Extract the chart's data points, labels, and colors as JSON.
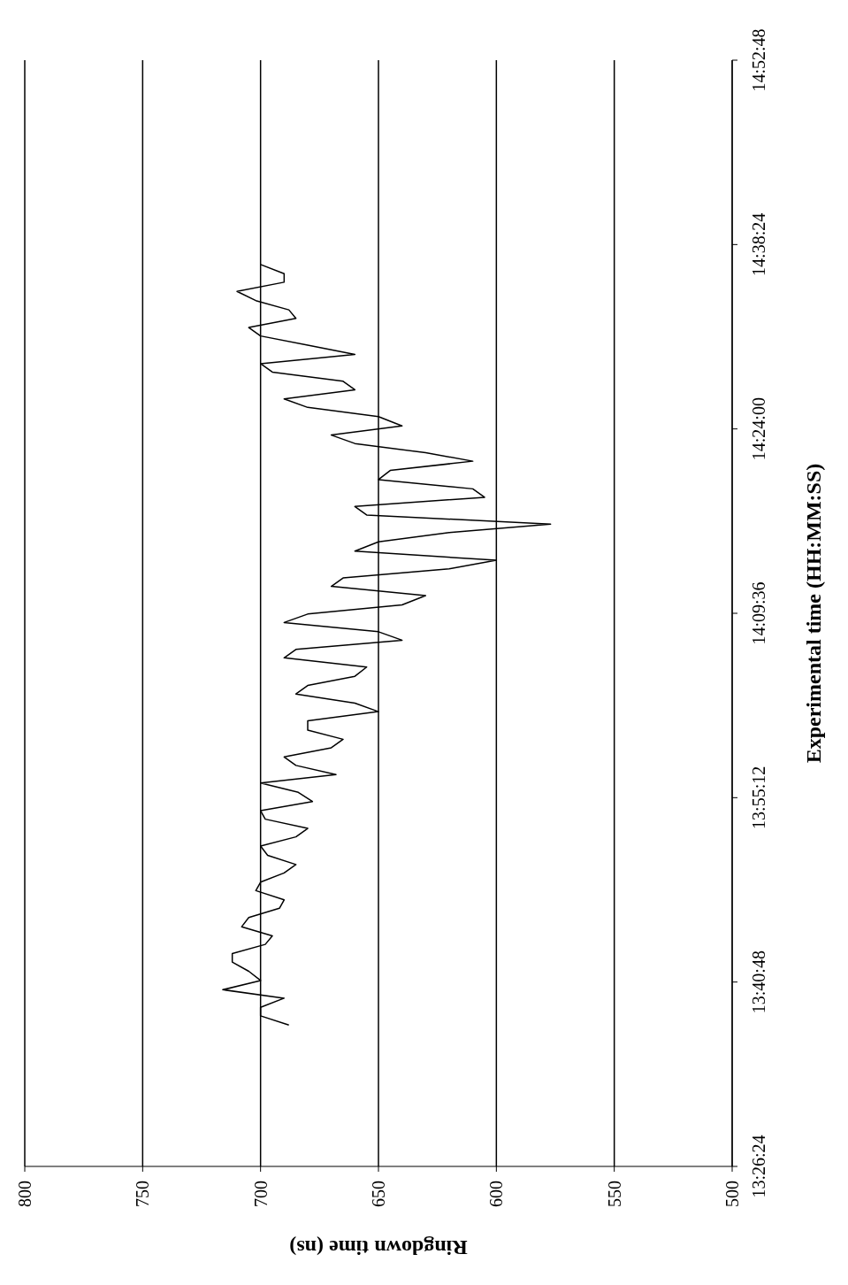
{
  "chart_data": {
    "type": "line",
    "xlabel": "Ringdown time (ns)",
    "ylabel": "Experimental time (HH:MM:SS)",
    "series": [
      {
        "color": "#000000",
        "x": [
          688,
          700,
          700,
          690,
          716,
          700,
          705,
          712,
          712,
          698,
          695,
          708,
          705,
          692,
          690,
          702,
          700,
          690,
          685,
          697,
          700,
          685,
          680,
          698,
          700,
          678,
          684,
          700,
          668,
          685,
          690,
          670,
          665,
          680,
          680,
          650,
          660,
          685,
          680,
          660,
          655,
          690,
          685,
          640,
          650,
          690,
          680,
          640,
          630,
          670,
          665,
          620,
          600,
          660,
          650,
          620,
          577,
          655,
          660,
          605,
          610,
          650,
          645,
          610,
          630,
          660,
          670,
          640,
          650,
          680,
          690,
          660,
          665,
          695,
          700,
          660,
          680,
          700,
          705,
          685,
          688,
          702,
          710,
          690,
          690,
          700
        ],
        "values": [
          13.624,
          13.636,
          13.647,
          13.659,
          13.67,
          13.682,
          13.694,
          13.706,
          13.717,
          13.729,
          13.74,
          13.752,
          13.764,
          13.776,
          13.787,
          13.799,
          13.81,
          13.822,
          13.833,
          13.845,
          13.857,
          13.869,
          13.88,
          13.892,
          13.903,
          13.915,
          13.927,
          13.939,
          13.95,
          13.962,
          13.973,
          13.985,
          13.996,
          14.008,
          14.02,
          14.032,
          14.043,
          14.055,
          14.066,
          14.078,
          14.09,
          14.102,
          14.113,
          14.125,
          14.136,
          14.148,
          14.159,
          14.171,
          14.183,
          14.195,
          14.206,
          14.218,
          14.229,
          14.241,
          14.253,
          14.265,
          14.276,
          14.288,
          14.299,
          14.311,
          14.322,
          14.334,
          14.346,
          14.358,
          14.369,
          14.381,
          14.392,
          14.404,
          14.416,
          14.428,
          14.439,
          14.451,
          14.462,
          14.474,
          14.485,
          14.497,
          14.509,
          14.521,
          14.532,
          14.544,
          14.555,
          14.567,
          14.579,
          14.591,
          14.602,
          14.614
        ]
      }
    ],
    "xlim": [
      800,
      500
    ],
    "xticks": [
      800,
      750,
      700,
      650,
      600,
      550,
      500
    ],
    "ylim": [
      13.44,
      14.88
    ],
    "yticks": [
      {
        "value": 13.44,
        "label": "13:26:24"
      },
      {
        "value": 13.68,
        "label": "13:40:48"
      },
      {
        "value": 13.92,
        "label": "13:55:12"
      },
      {
        "value": 14.16,
        "label": "14:09:36"
      },
      {
        "value": 14.4,
        "label": "14:24:00"
      },
      {
        "value": 14.64,
        "label": "14:38:24"
      },
      {
        "value": 14.88,
        "label": "14:52:48"
      }
    ],
    "grid": "x",
    "legend": false,
    "marker": "none",
    "line_style": "solid"
  }
}
